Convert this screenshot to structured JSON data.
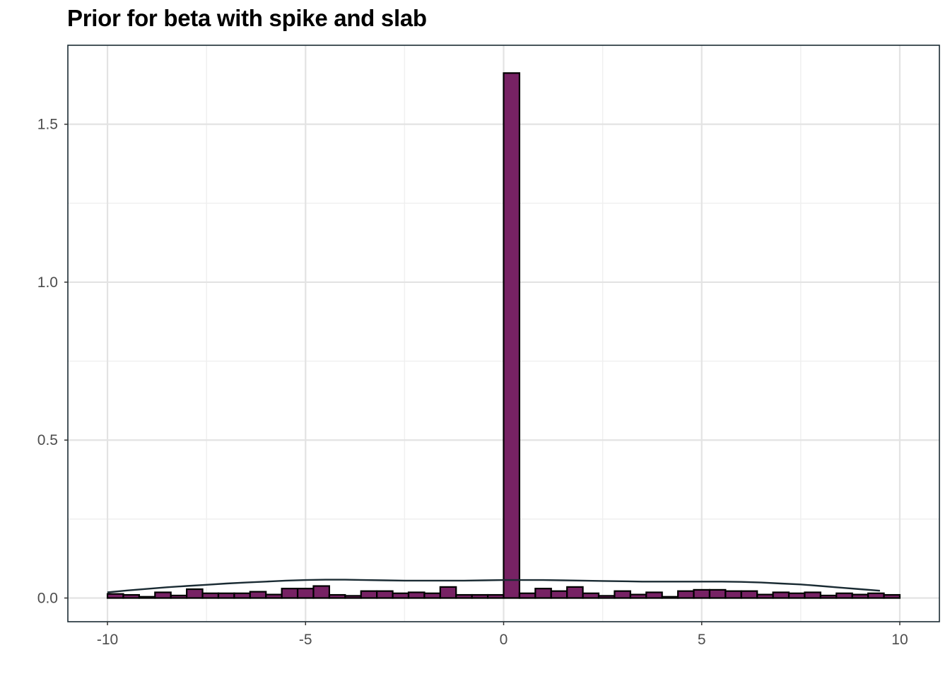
{
  "chart_data": {
    "type": "bar",
    "title": "Prior for beta with spike and slab",
    "xlabel": "",
    "ylabel": "",
    "xlim": [
      -11.0,
      11.0
    ],
    "ylim": [
      -0.075,
      1.75
    ],
    "grid": true,
    "legend": "none",
    "x_ticks": [
      "-10",
      "-5",
      "0",
      "5",
      "10"
    ],
    "x_tick_values": [
      -10,
      -5,
      0,
      5,
      10
    ],
    "y_ticks": [
      "0.0",
      "0.5",
      "1.0",
      "1.5"
    ],
    "y_tick_values": [
      0,
      0.5,
      1.0,
      1.5
    ],
    "bin_width": 0.4,
    "bin_centers": [
      -9.8,
      -9.4,
      -9.0,
      -8.6,
      -8.2,
      -7.8,
      -7.4,
      -7.0,
      -6.6,
      -6.2,
      -5.8,
      -5.4,
      -5.0,
      -4.6,
      -4.2,
      -3.8,
      -3.4,
      -3.0,
      -2.6,
      -2.2,
      -1.8,
      -1.4,
      -1.0,
      -0.6,
      -0.2,
      0.2,
      0.6,
      1.0,
      1.4,
      1.8,
      2.2,
      2.6,
      3.0,
      3.4,
      3.8,
      4.2,
      4.6,
      5.0,
      5.4,
      5.8,
      6.2,
      6.6,
      7.0,
      7.4,
      7.8,
      8.2,
      8.6,
      9.0,
      9.4,
      9.8
    ],
    "values": [
      0.013,
      0.01,
      0.004,
      0.018,
      0.008,
      0.028,
      0.015,
      0.015,
      0.015,
      0.02,
      0.011,
      0.03,
      0.03,
      0.038,
      0.01,
      0.007,
      0.022,
      0.022,
      0.015,
      0.018,
      0.015,
      0.035,
      0.01,
      0.01,
      0.01,
      1.662,
      0.015,
      0.03,
      0.022,
      0.035,
      0.015,
      0.007,
      0.022,
      0.011,
      0.018,
      0.004,
      0.022,
      0.026,
      0.026,
      0.022,
      0.022,
      0.011,
      0.018,
      0.015,
      0.018,
      0.008,
      0.015,
      0.011,
      0.015,
      0.01
    ],
    "density_curve": {
      "x": [
        -10,
        -9.5,
        -9,
        -8.5,
        -8,
        -7.5,
        -7,
        -6.5,
        -6,
        -5.5,
        -5,
        -4.5,
        -4,
        -3.5,
        -3,
        -2.5,
        -2,
        -1.5,
        -1,
        -0.5,
        0,
        0.5,
        1,
        1.5,
        2,
        2.5,
        3,
        3.5,
        4,
        4.5,
        5,
        5.5,
        6,
        6.5,
        7,
        7.5,
        8,
        8.5,
        9,
        9.5
      ],
      "y": [
        0.018,
        0.024,
        0.029,
        0.034,
        0.038,
        0.042,
        0.046,
        0.049,
        0.052,
        0.055,
        0.057,
        0.058,
        0.058,
        0.057,
        0.056,
        0.055,
        0.055,
        0.055,
        0.055,
        0.056,
        0.057,
        0.057,
        0.057,
        0.056,
        0.055,
        0.054,
        0.053,
        0.052,
        0.052,
        0.052,
        0.052,
        0.052,
        0.051,
        0.049,
        0.046,
        0.043,
        0.038,
        0.033,
        0.028,
        0.023
      ]
    }
  },
  "colors": {
    "bar_fill": "#772264",
    "bar_stroke": "#000000",
    "curve": "#1a2b33",
    "panel_border": "#1a2b33",
    "grid_major": "#e3e3e3",
    "grid_minor": "#efefef",
    "tick_text": "#4d4d4d"
  }
}
